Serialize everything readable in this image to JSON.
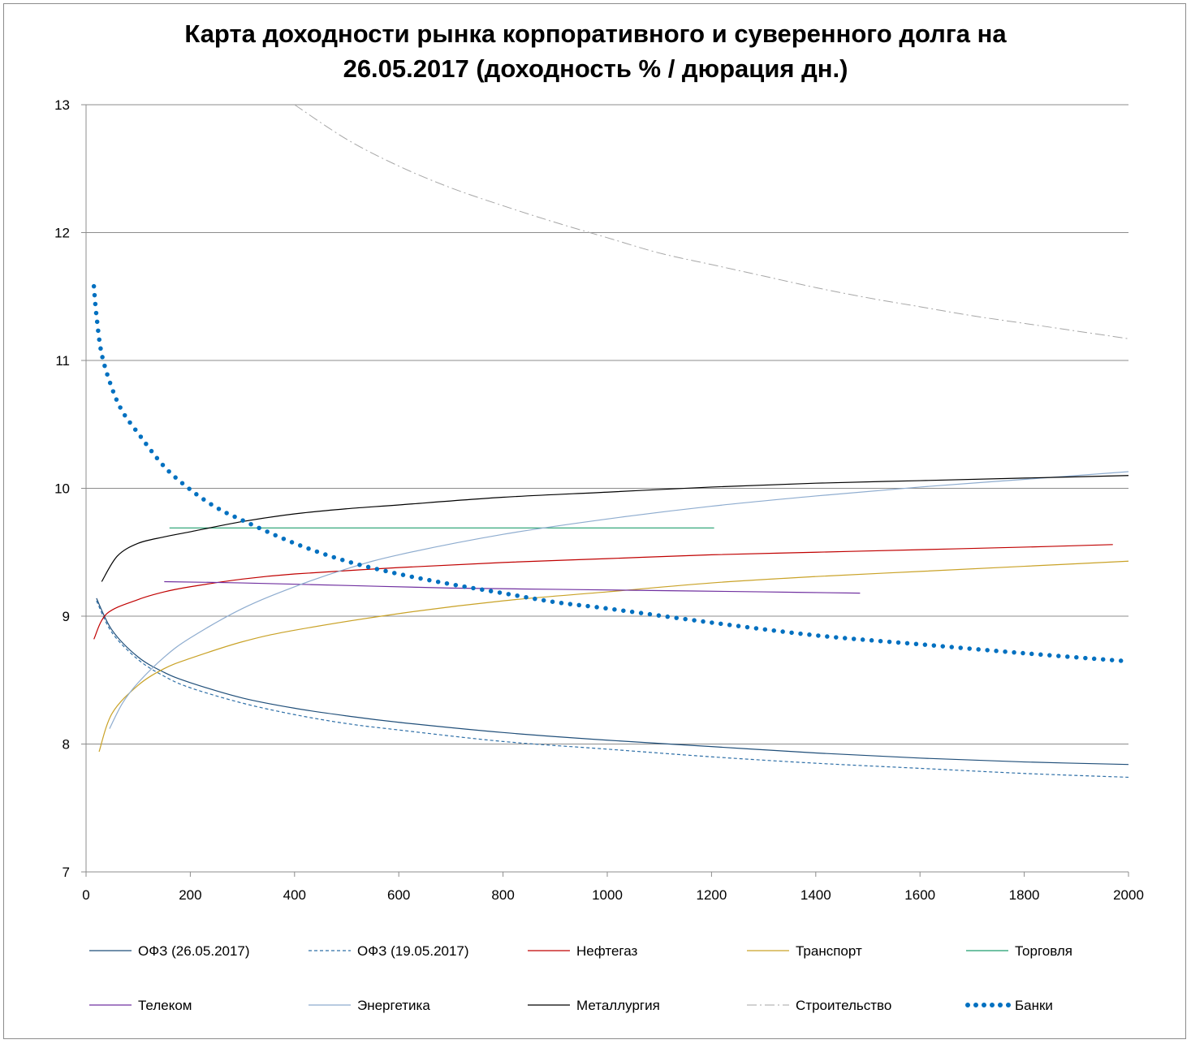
{
  "chart_data": {
    "type": "line",
    "title_lines": [
      "Карта доходности рынка корпоративного и суверенного долга на",
      "26.05.2017 (доходность % / дюрация дн.)"
    ],
    "xlim": [
      0,
      2000
    ],
    "ylim": [
      7,
      13
    ],
    "x_ticks": [
      "0",
      "200",
      "400",
      "600",
      "800",
      "1000",
      "1200",
      "1400",
      "1600",
      "1800",
      "2000"
    ],
    "y_ticks": [
      "7",
      "8",
      "9",
      "10",
      "11",
      "12",
      "13"
    ],
    "grid": "horizontal",
    "legend_position": "bottom",
    "series": [
      {
        "name": "ОФЗ (26.05.2017)",
        "color": "#1f4e79",
        "style": "solid",
        "x": [
          20,
          50,
          100,
          150,
          200,
          300,
          400,
          500,
          600,
          800,
          1000,
          1200,
          1400,
          1600,
          1800,
          2000
        ],
        "y": [
          9.14,
          8.89,
          8.68,
          8.56,
          8.48,
          8.36,
          8.28,
          8.22,
          8.17,
          8.09,
          8.03,
          7.98,
          7.93,
          7.89,
          7.86,
          7.84
        ]
      },
      {
        "name": "ОФЗ (19.05.2017)",
        "color": "#2e6fa7",
        "style": "dashed",
        "x": [
          20,
          50,
          100,
          150,
          200,
          300,
          400,
          500,
          600,
          800,
          1000,
          1200,
          1400,
          1600,
          1800,
          2000
        ],
        "y": [
          9.12,
          8.87,
          8.66,
          8.53,
          8.44,
          8.32,
          8.23,
          8.16,
          8.11,
          8.02,
          7.96,
          7.9,
          7.85,
          7.81,
          7.77,
          7.74
        ]
      },
      {
        "name": "Нефтегаз",
        "color": "#c00000",
        "style": "solid",
        "x": [
          15,
          40,
          100,
          150,
          200,
          300,
          400,
          600,
          800,
          1000,
          1200,
          1400,
          1600,
          1800,
          1970
        ],
        "y": [
          8.82,
          9.02,
          9.13,
          9.19,
          9.23,
          9.29,
          9.33,
          9.38,
          9.42,
          9.45,
          9.48,
          9.5,
          9.52,
          9.54,
          9.56
        ]
      },
      {
        "name": "Транспорт",
        "color": "#c9a227",
        "style": "solid",
        "x": [
          25,
          50,
          100,
          150,
          200,
          300,
          400,
          600,
          800,
          1000,
          1200,
          1400,
          1600,
          1800,
          2000
        ],
        "y": [
          7.94,
          8.24,
          8.46,
          8.59,
          8.67,
          8.8,
          8.89,
          9.02,
          9.12,
          9.19,
          9.26,
          9.31,
          9.35,
          9.39,
          9.43
        ]
      },
      {
        "name": "Торговля",
        "color": "#1f9e6e",
        "style": "solid",
        "x": [
          160,
          1205
        ],
        "y": [
          9.69,
          9.69
        ]
      },
      {
        "name": "Телеком",
        "color": "#7030a0",
        "style": "solid",
        "x": [
          150,
          300,
          500,
          700,
          900,
          1100,
          1300,
          1485
        ],
        "y": [
          9.27,
          9.26,
          9.24,
          9.22,
          9.21,
          9.2,
          9.19,
          9.18
        ]
      },
      {
        "name": "Энергетика",
        "color": "#8eaccf",
        "style": "solid",
        "x": [
          45,
          70,
          100,
          150,
          200,
          300,
          400,
          500,
          600,
          800,
          1000,
          1200,
          1400,
          1600,
          1800,
          2000
        ],
        "y": [
          8.12,
          8.32,
          8.48,
          8.68,
          8.83,
          9.06,
          9.23,
          9.37,
          9.48,
          9.64,
          9.76,
          9.86,
          9.94,
          10.01,
          10.07,
          10.13
        ]
      },
      {
        "name": "Металлургия",
        "color": "#000000",
        "style": "solid",
        "x": [
          30,
          60,
          100,
          150,
          200,
          300,
          400,
          500,
          600,
          800,
          1000,
          1200,
          1400,
          1600,
          1800,
          2000
        ],
        "y": [
          9.27,
          9.47,
          9.57,
          9.62,
          9.66,
          9.74,
          9.8,
          9.84,
          9.87,
          9.93,
          9.97,
          10.01,
          10.04,
          10.06,
          10.08,
          10.1
        ]
      },
      {
        "name": "Строительство",
        "color": "#a6a6a6",
        "style": "dashdot",
        "x": [
          400,
          500,
          600,
          700,
          800,
          900,
          1000,
          1100,
          1200,
          1300,
          1400,
          1500,
          1600,
          1700,
          1800,
          1900,
          2000
        ],
        "y": [
          13.0,
          12.73,
          12.52,
          12.35,
          12.21,
          12.08,
          11.96,
          11.84,
          11.75,
          11.66,
          11.57,
          11.49,
          11.42,
          11.35,
          11.29,
          11.23,
          11.17
        ]
      },
      {
        "name": "Банки",
        "color": "#0070c0",
        "style": "dotted",
        "x": [
          15,
          20,
          30,
          50,
          70,
          100,
          150,
          200,
          250,
          300,
          400,
          500,
          600,
          700,
          800,
          900,
          1000,
          1200,
          1400,
          1600,
          1800,
          1990
        ],
        "y": [
          11.58,
          11.35,
          11.05,
          10.78,
          10.6,
          10.43,
          10.17,
          9.99,
          9.85,
          9.75,
          9.57,
          9.43,
          9.33,
          9.25,
          9.18,
          9.11,
          9.06,
          8.95,
          8.85,
          8.78,
          8.71,
          8.65
        ]
      }
    ]
  }
}
